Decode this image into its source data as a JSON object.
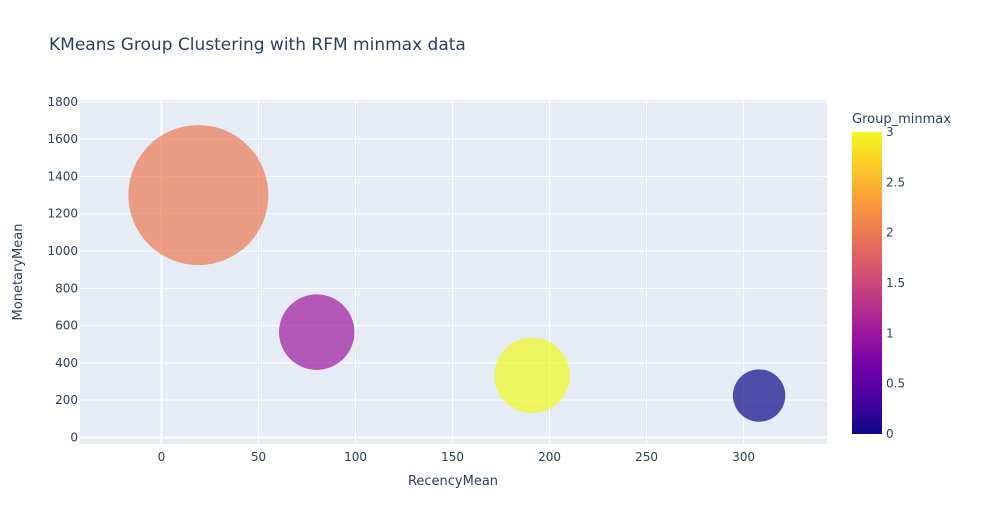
{
  "chart_data": {
    "type": "scatter",
    "title": "KMeans Group Clustering with RFM minmax data",
    "xlabel": "RecencyMean",
    "ylabel": "MonetaryMean",
    "xlim": [
      -42,
      343
    ],
    "ylim": [
      -35,
      1810
    ],
    "x_ticks": [
      0,
      50,
      100,
      150,
      200,
      250,
      300
    ],
    "y_ticks": [
      0,
      200,
      400,
      600,
      800,
      1000,
      1200,
      1400,
      1600,
      1800
    ],
    "grid": true,
    "bubble_sizing": "relative",
    "points": [
      {
        "x": 19,
        "y": 1300,
        "group": 2,
        "size": 1.0,
        "color": "#ed7953"
      },
      {
        "x": 80,
        "y": 565,
        "group": 1,
        "size": 0.29,
        "color": "#9c179e"
      },
      {
        "x": 191,
        "y": 333,
        "group": 3,
        "size": 0.29,
        "color": "#f0f921"
      },
      {
        "x": 308,
        "y": 225,
        "group": 0,
        "size": 0.14,
        "color": "#0d0887"
      }
    ],
    "colorbar": {
      "title": "Group_minmax",
      "range": [
        0,
        3
      ],
      "ticks": [
        "0",
        "0.5",
        "1",
        "1.5",
        "2",
        "2.5",
        "3"
      ],
      "colorscale": [
        "#0d0887",
        "#46039f",
        "#7201a8",
        "#9c179e",
        "#bd3786",
        "#d8576b",
        "#ed7953",
        "#fb9f3a",
        "#fdca26",
        "#f0f921"
      ]
    }
  }
}
